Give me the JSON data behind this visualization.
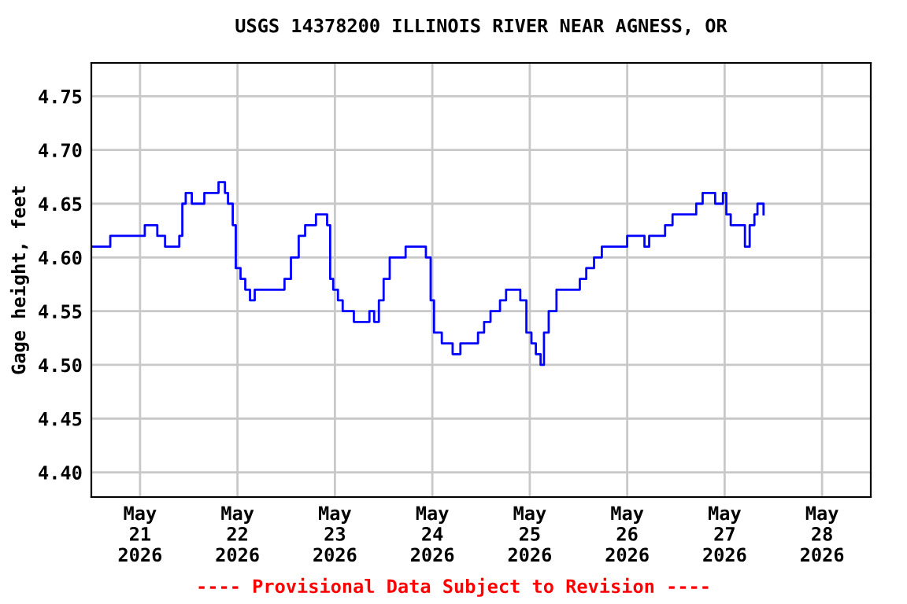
{
  "chart_data": {
    "type": "step",
    "title": "USGS 14378200 ILLINOIS RIVER NEAR AGNESS, OR",
    "ylabel": "Gage height, feet",
    "annotations": [
      "---- Provisional Data Subject to Revision ----"
    ],
    "x": [
      "2026-05-20T12:00",
      "2026-05-20T16:40",
      "2026-05-20T22:30",
      "2026-05-21T01:10",
      "2026-05-21T04:15",
      "2026-05-21T06:10",
      "2026-05-21T08:55",
      "2026-05-21T09:40",
      "2026-05-21T10:25",
      "2026-05-21T11:15",
      "2026-05-21T12:45",
      "2026-05-21T14:40",
      "2026-05-21T15:50",
      "2026-05-21T18:35",
      "2026-05-21T19:20",
      "2026-05-21T20:55",
      "2026-05-21T21:40",
      "2026-05-21T22:50",
      "2026-05-21T23:35",
      "2026-05-22T00:45",
      "2026-05-22T01:55",
      "2026-05-22T03:05",
      "2026-05-22T04:15",
      "2026-05-22T08:05",
      "2026-05-22T10:50",
      "2026-05-22T11:35",
      "2026-05-22T13:10",
      "2026-05-22T15:05",
      "2026-05-22T16:40",
      "2026-05-22T19:00",
      "2026-05-22T19:20",
      "2026-05-22T22:05",
      "2026-05-22T22:50",
      "2026-05-22T23:35",
      "2026-05-23T00:45",
      "2026-05-23T01:55",
      "2026-05-23T03:30",
      "2026-05-23T04:40",
      "2026-05-23T08:30",
      "2026-05-23T09:40",
      "2026-05-23T10:50",
      "2026-05-23T12:00",
      "2026-05-23T13:30",
      "2026-05-23T15:05",
      "2026-05-23T17:25",
      "2026-05-23T19:00",
      "2026-05-23T21:20",
      "2026-05-23T22:25",
      "2026-05-23T23:35",
      "2026-05-24T00:25",
      "2026-05-24T02:20",
      "2026-05-24T03:50",
      "2026-05-24T05:00",
      "2026-05-24T06:55",
      "2026-05-24T09:40",
      "2026-05-24T11:15",
      "2026-05-24T12:45",
      "2026-05-24T14:20",
      "2026-05-24T16:40",
      "2026-05-24T18:10",
      "2026-05-24T20:05",
      "2026-05-24T21:40",
      "2026-05-24T23:10",
      "2026-05-25T00:25",
      "2026-05-25T01:30",
      "2026-05-25T02:40",
      "2026-05-25T03:30",
      "2026-05-25T04:40",
      "2026-05-25T06:35",
      "2026-05-25T08:30",
      "2026-05-25T10:50",
      "2026-05-25T12:20",
      "2026-05-25T13:55",
      "2026-05-25T15:50",
      "2026-05-25T17:45",
      "2026-05-25T23:10",
      "2026-05-26T00:00",
      "2026-05-26T02:20",
      "2026-05-26T04:15",
      "2026-05-26T05:25",
      "2026-05-26T08:05",
      "2026-05-26T09:20",
      "2026-05-26T11:10",
      "2026-05-26T15:50",
      "2026-05-26T17:00",
      "2026-05-26T18:35",
      "2026-05-26T21:40",
      "2026-05-26T23:35",
      "2026-05-27T00:25",
      "2026-05-27T01:30",
      "2026-05-27T03:25",
      "2026-05-27T05:00",
      "2026-05-27T06:10",
      "2026-05-27T07:20",
      "2026-05-27T08:05",
      "2026-05-27T09:35"
    ],
    "series": [
      {
        "color": "#0000ff",
        "values": [
          4.61,
          4.62,
          4.62,
          4.63,
          4.62,
          4.61,
          4.61,
          4.62,
          4.65,
          4.66,
          4.65,
          4.65,
          4.66,
          4.66,
          4.67,
          4.66,
          4.65,
          4.63,
          4.59,
          4.58,
          4.57,
          4.56,
          4.57,
          4.57,
          4.57,
          4.58,
          4.6,
          4.62,
          4.63,
          4.63,
          4.64,
          4.63,
          4.58,
          4.57,
          4.56,
          4.55,
          4.55,
          4.54,
          4.55,
          4.54,
          4.56,
          4.58,
          4.6,
          4.6,
          4.61,
          4.61,
          4.61,
          4.6,
          4.56,
          4.53,
          4.52,
          4.52,
          4.51,
          4.52,
          4.52,
          4.53,
          4.54,
          4.55,
          4.56,
          4.57,
          4.57,
          4.56,
          4.53,
          4.52,
          4.51,
          4.5,
          4.53,
          4.55,
          4.57,
          4.57,
          4.57,
          4.58,
          4.59,
          4.6,
          4.61,
          4.61,
          4.62,
          4.62,
          4.61,
          4.62,
          4.62,
          4.63,
          4.64,
          4.64,
          4.65,
          4.66,
          4.65,
          4.66,
          4.64,
          4.63,
          4.63,
          4.61,
          4.63,
          4.64,
          4.65,
          4.64
        ]
      }
    ],
    "xlim": [
      "2026-05-20T12:00",
      "2026-05-28T12:00"
    ],
    "xticks": [
      {
        "value": "2026-05-21",
        "label": "May\n21\n2026"
      },
      {
        "value": "2026-05-22",
        "label": "May\n22\n2026"
      },
      {
        "value": "2026-05-23",
        "label": "May\n23\n2026"
      },
      {
        "value": "2026-05-24",
        "label": "May\n24\n2026"
      },
      {
        "value": "2026-05-25",
        "label": "May\n25\n2026"
      },
      {
        "value": "2026-05-26",
        "label": "May\n26\n2026"
      },
      {
        "value": "2026-05-27",
        "label": "May\n27\n2026"
      },
      {
        "value": "2026-05-28",
        "label": "May\n28\n2026"
      }
    ],
    "ylim": [
      4.377,
      4.781
    ],
    "yticks": [
      {
        "value": 4.4,
        "label": "4.40"
      },
      {
        "value": 4.45,
        "label": "4.45"
      },
      {
        "value": 4.5,
        "label": "4.50"
      },
      {
        "value": 4.55,
        "label": "4.55"
      },
      {
        "value": 4.6,
        "label": "4.60"
      },
      {
        "value": 4.65,
        "label": "4.65"
      },
      {
        "value": 4.7,
        "label": "4.70"
      },
      {
        "value": 4.75,
        "label": "4.75"
      }
    ],
    "grid": true
  }
}
